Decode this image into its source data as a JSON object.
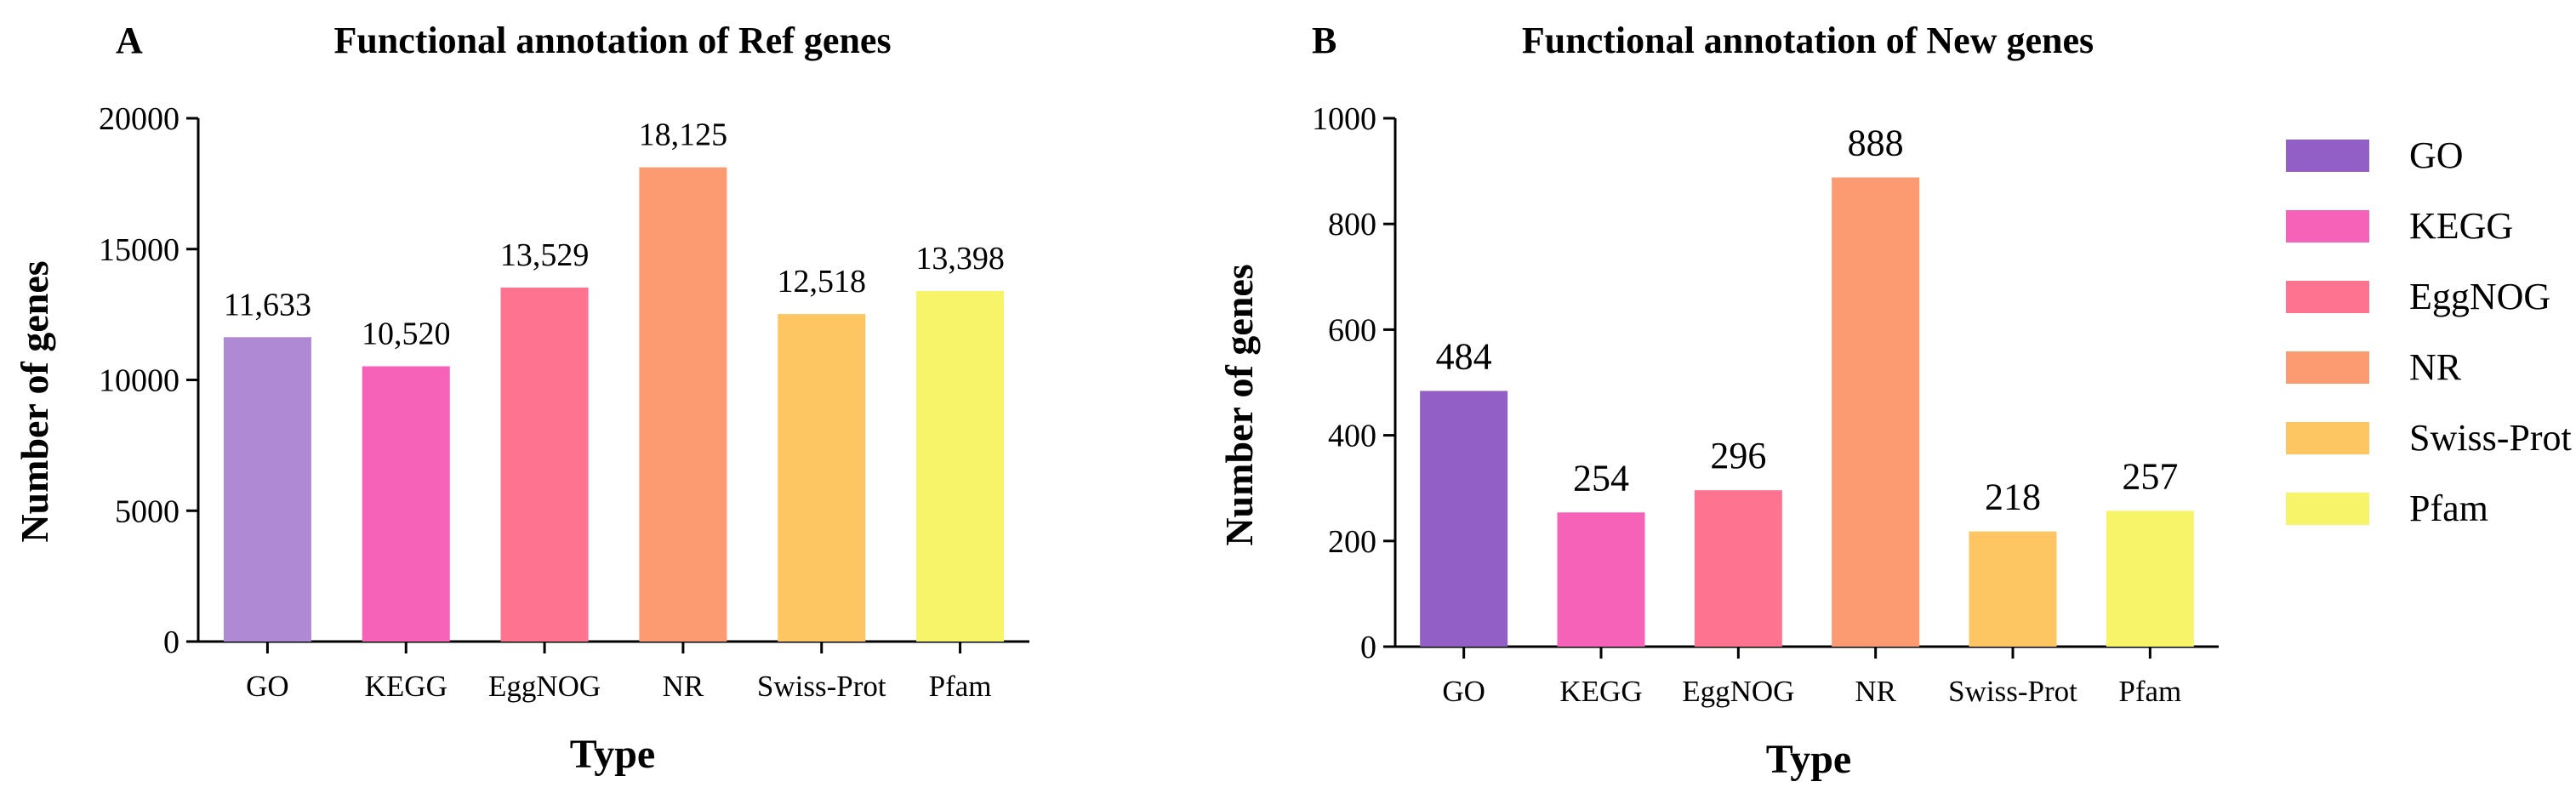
{
  "chart_data": [
    {
      "type": "bar",
      "panel": "A",
      "title": "Functional annotation of Ref genes",
      "xlabel": "Type",
      "ylabel": "Number of genes",
      "categories": [
        "GO",
        "KEGG",
        "EggNOG",
        "NR",
        "Swiss-Prot",
        "Pfam"
      ],
      "values": [
        11633,
        10520,
        13529,
        18125,
        12518,
        13398
      ],
      "value_labels": [
        "11,633",
        "10,520",
        "13,529",
        "18,125",
        "12,518",
        "13,398"
      ],
      "ylim": [
        0,
        20000
      ],
      "yticks": [
        0,
        5000,
        10000,
        15000,
        20000
      ],
      "ytick_labels": [
        "0",
        "5000",
        "10000",
        "15000",
        "20000"
      ],
      "colors": [
        "#af89d4",
        "#f562b7",
        "#fd7390",
        "#fc9a71",
        "#fdc662",
        "#f7f46a"
      ]
    },
    {
      "type": "bar",
      "panel": "B",
      "title": "Functional annotation of New genes",
      "xlabel": "Type",
      "ylabel": "Number of genes",
      "categories": [
        "GO",
        "KEGG",
        "EggNOG",
        "NR",
        "Swiss-Prot",
        "Pfam"
      ],
      "values": [
        484,
        254,
        296,
        888,
        218,
        257
      ],
      "value_labels": [
        "484",
        "254",
        "296",
        "888",
        "218",
        "257"
      ],
      "ylim": [
        0,
        1000
      ],
      "yticks": [
        0,
        200,
        400,
        600,
        800,
        1000
      ],
      "ytick_labels": [
        "0",
        "200",
        "400",
        "600",
        "800",
        "1000"
      ],
      "colors": [
        "#925fc6",
        "#f562b7",
        "#fd7390",
        "#fc9a71",
        "#fdc662",
        "#f7f46a"
      ]
    }
  ],
  "legend": {
    "placement": "right",
    "items": [
      {
        "label": "GO",
        "color": "#925fc6"
      },
      {
        "label": "KEGG",
        "color": "#f562b7"
      },
      {
        "label": "EggNOG",
        "color": "#fd7390"
      },
      {
        "label": "NR",
        "color": "#fc9a71"
      },
      {
        "label": "Swiss-Prot",
        "color": "#fdc662"
      },
      {
        "label": "Pfam",
        "color": "#f7f46a"
      }
    ]
  }
}
